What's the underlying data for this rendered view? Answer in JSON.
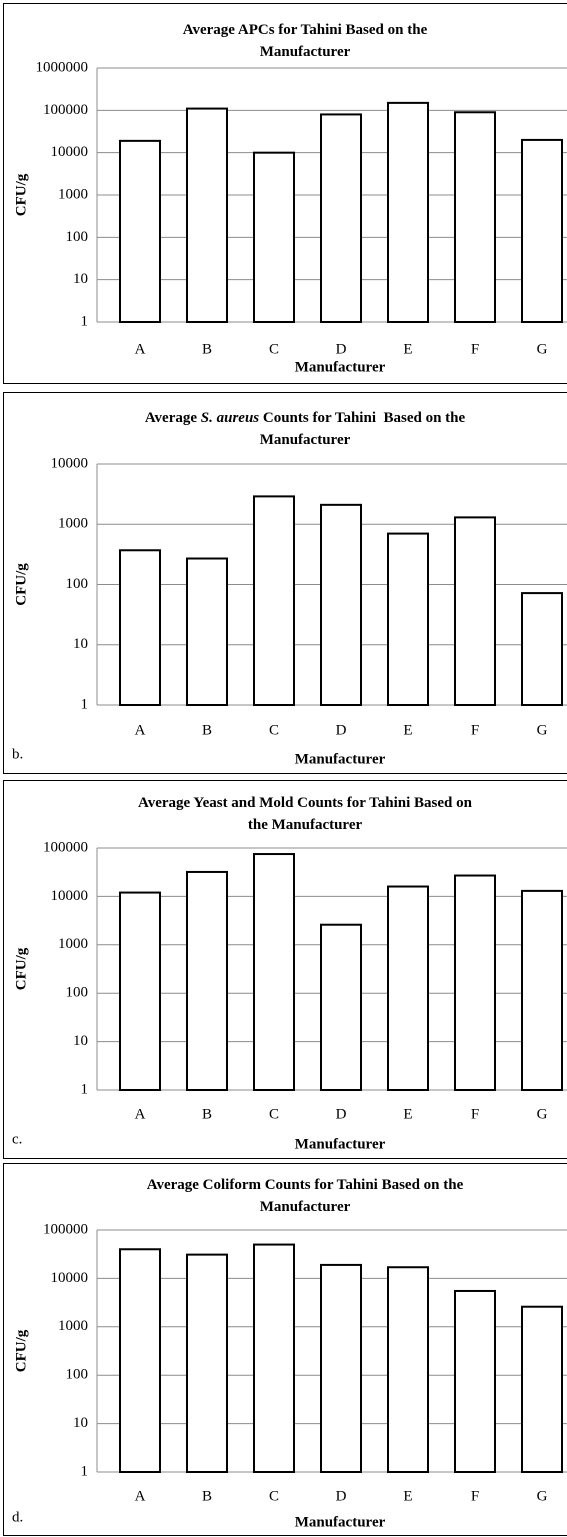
{
  "chart_data": [
    {
      "type": "bar",
      "title": "Average APCs for Tahini Based on the Manufacturer",
      "xlabel": "Manufacturer",
      "ylabel": "CFU/g",
      "categories": [
        "A",
        "B",
        "C",
        "D",
        "E",
        "F",
        "G"
      ],
      "values": [
        19000,
        110000,
        10000,
        80000,
        150000,
        90000,
        20000
      ],
      "color": "#ffffff",
      "edgecolor": "#000000",
      "log_scale": true,
      "grid": true,
      "ylim": [
        1,
        1000000
      ],
      "yticks": [
        1,
        10,
        100,
        1000,
        10000,
        100000,
        1000000
      ]
    },
    {
      "type": "bar",
      "title": [
        {
          "text": "Average "
        },
        {
          "text": "S. aureus",
          "italic": true
        },
        {
          "text": " Counts for Tahini  Based on the Manufacturer"
        }
      ],
      "xlabel": "Manufacturer",
      "ylabel": "CFU/g",
      "panel_label": "b.",
      "categories": [
        "A",
        "B",
        "C",
        "D",
        "E",
        "F",
        "G"
      ],
      "values": [
        370,
        270,
        2900,
        2100,
        700,
        1300,
        72
      ],
      "color": "#ffffff",
      "edgecolor": "#000000",
      "log_scale": true,
      "grid": true,
      "ylim": [
        1,
        10000
      ],
      "yticks": [
        1,
        10,
        100,
        1000,
        10000
      ]
    },
    {
      "type": "bar",
      "title": "Average Yeast and Mold Counts for Tahini Based on the Manufacturer",
      "xlabel": "Manufacturer",
      "ylabel": "CFU/g",
      "panel_label": "c.",
      "categories": [
        "A",
        "B",
        "C",
        "D",
        "E",
        "F",
        "G"
      ],
      "values": [
        12000,
        32000,
        75000,
        2600,
        16000,
        27000,
        13000
      ],
      "color": "#ffffff",
      "edgecolor": "#000000",
      "log_scale": true,
      "grid": true,
      "ylim": [
        1,
        100000
      ],
      "yticks": [
        1,
        10,
        100,
        1000,
        10000,
        100000
      ]
    },
    {
      "type": "bar",
      "title": "Average Coliform Counts for Tahini Based on the Manufacturer",
      "xlabel": "Manufacturer",
      "ylabel": "CFU/g",
      "panel_label": "d.",
      "categories": [
        "A",
        "B",
        "C",
        "D",
        "E",
        "F",
        "G"
      ],
      "values": [
        40000,
        31000,
        50000,
        19000,
        17000,
        5500,
        2600
      ],
      "color": "#ffffff",
      "edgecolor": "#000000",
      "log_scale": true,
      "grid": true,
      "ylim": [
        1,
        100000
      ],
      "yticks": [
        1,
        10,
        100,
        1000,
        10000,
        100000
      ]
    }
  ]
}
